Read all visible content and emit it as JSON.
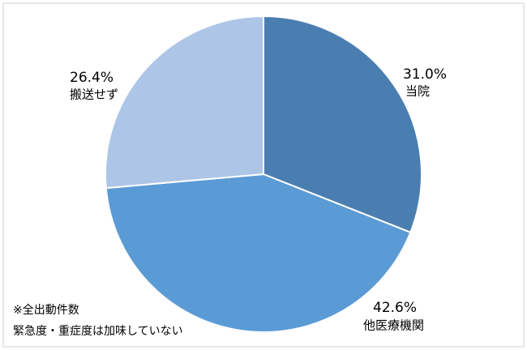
{
  "chart_data": {
    "type": "pie",
    "categories": [
      "当院",
      "他医療機関",
      "搬送せず"
    ],
    "values": [
      31.0,
      42.6,
      26.4
    ],
    "value_labels": [
      "31.0%",
      "42.6%",
      "26.4%"
    ],
    "colors": [
      "#4a7eb0",
      "#5b9bd5",
      "#adc5e7"
    ],
    "notes": [
      "※全出動件数",
      "緊急度・重症度は加味していない"
    ]
  }
}
